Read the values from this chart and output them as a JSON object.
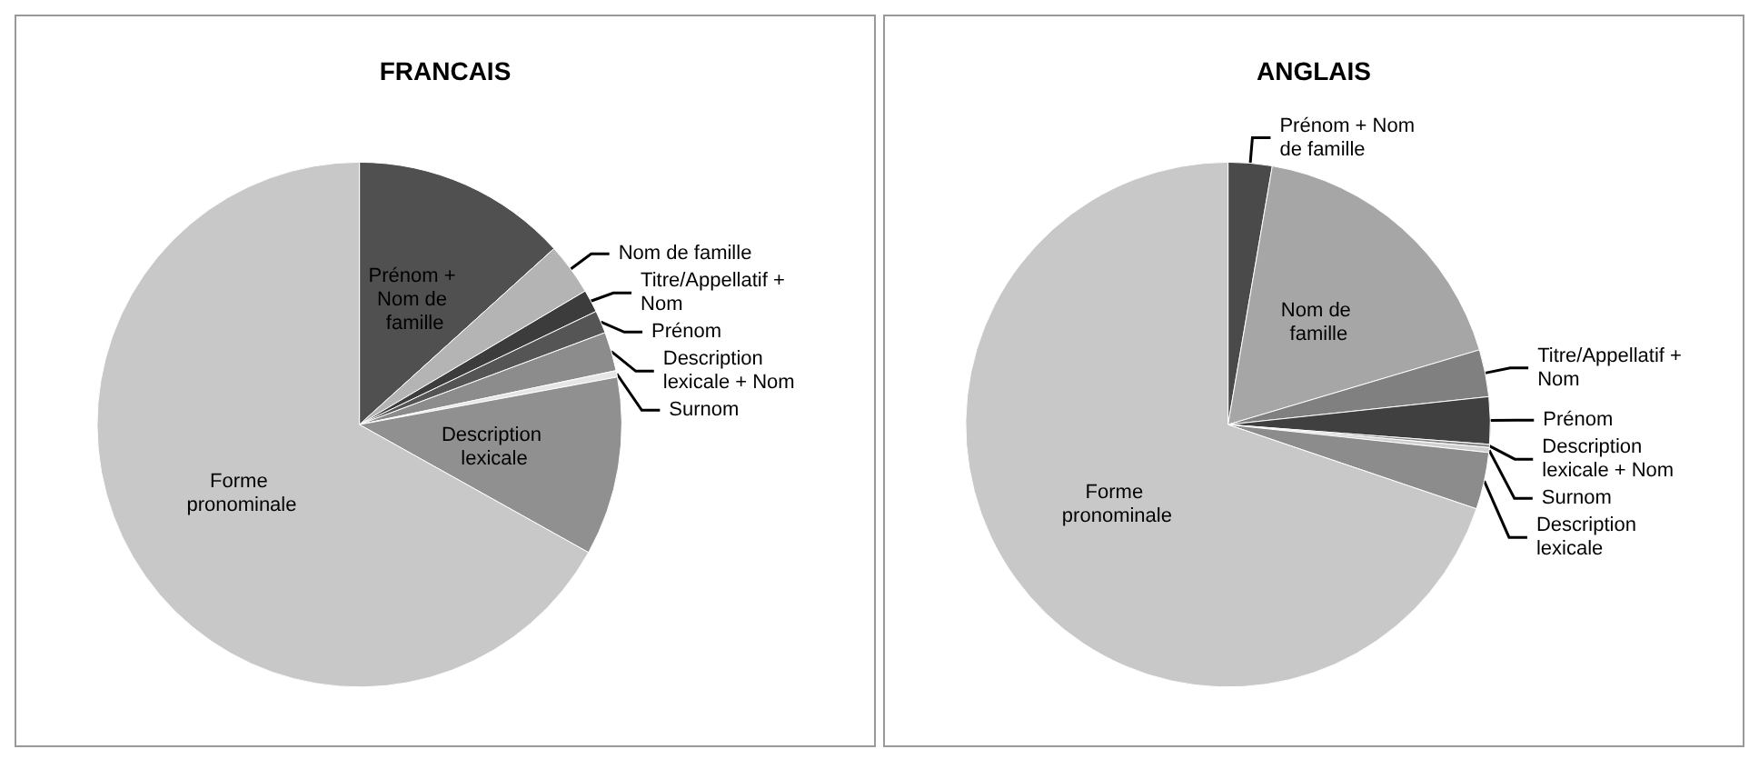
{
  "chart_data": [
    {
      "type": "pie",
      "title": "FRANCAIS",
      "categories": [
        "Prénom + Nom de famille",
        "Nom de famille",
        "Titre/Appellatif + Nom",
        "Prénom",
        "Description lexicale + Nom",
        "Surnom",
        "Description lexicale",
        "Forme pronominale"
      ],
      "values": [
        13.3,
        3.2,
        1.4,
        1.4,
        2.4,
        0.4,
        11.0,
        66.9
      ],
      "colors": [
        "#505050",
        "#b4b4b4",
        "#3c3c3c",
        "#555555",
        "#8c8c8c",
        "#e6e6e6",
        "#909090",
        "#c8c8c8"
      ]
    },
    {
      "type": "pie",
      "title": "ANGLAIS",
      "categories": [
        "Prénom + Nom de famille",
        "Nom de famille",
        "Titre/Appellatif + Nom",
        "Prénom",
        "Description lexicale + Nom",
        "Surnom",
        "Description lexicale",
        "Forme pronominale"
      ],
      "values": [
        2.7,
        17.7,
        2.9,
        2.9,
        0.2,
        0.3,
        3.5,
        69.8
      ],
      "colors": [
        "#4a4a4a",
        "#a6a6a6",
        "#808080",
        "#404040",
        "#8c8c8c",
        "#d0d0d0",
        "#8c8c8c",
        "#c8c8c8"
      ]
    }
  ]
}
